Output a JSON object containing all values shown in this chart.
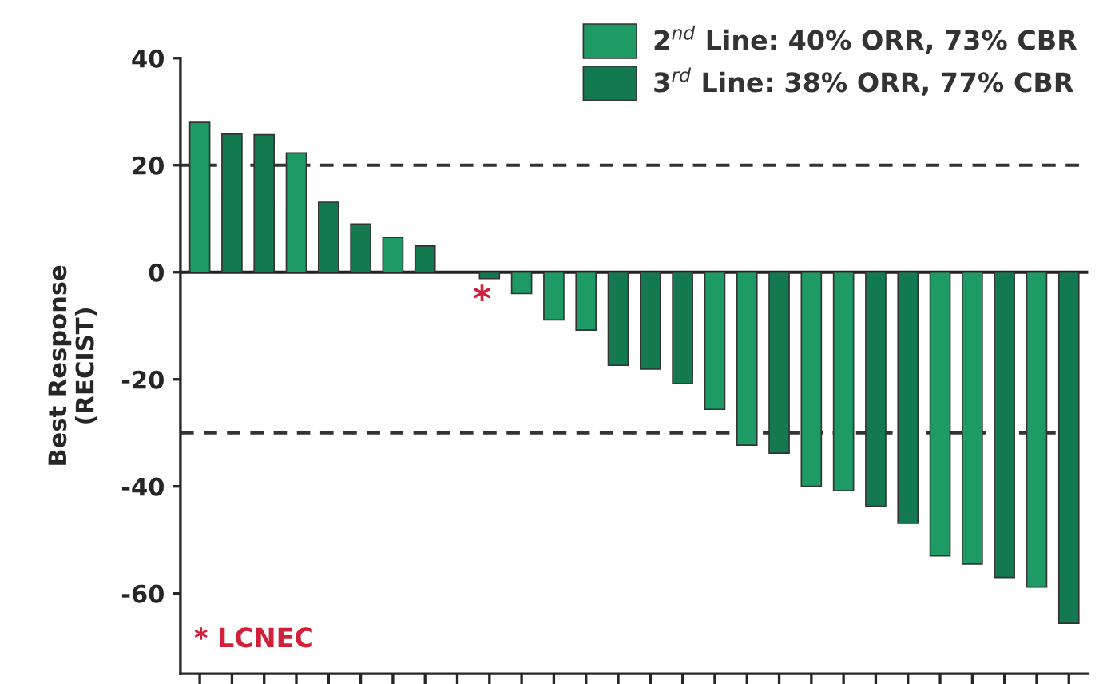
{
  "chart_data": {
    "type": "bar",
    "ylabel": "Best Response\n(RECIST)",
    "categories": [
      null,
      null,
      null,
      null,
      null,
      null,
      null,
      null,
      null,
      null,
      null,
      null,
      null,
      null,
      null,
      null,
      null,
      null,
      null,
      null,
      null,
      null,
      null,
      null,
      null,
      null,
      null,
      null
    ],
    "series": [
      {
        "name": "2$^{nd}$ Line: 40% ORR, 73% CBR",
        "color": "#1e9a64",
        "values": [
          28,
          null,
          null,
          22.3,
          null,
          null,
          6.5,
          null,
          null,
          null,
          -4,
          -8.9,
          -10.8,
          null,
          null,
          null,
          -25.6,
          -32.3,
          null,
          -40,
          -40.8,
          null,
          null,
          -53,
          -54.5,
          null,
          -58.8,
          null
        ]
      },
      {
        "name": "3$^{rd}$ Line: 38% ORR, 77% CBR",
        "color": "#137a50",
        "values": [
          null,
          25.8,
          25.7,
          null,
          13.1,
          9,
          null,
          4.9,
          null,
          -1.2,
          null,
          null,
          null,
          -17.4,
          -18.1,
          -20.8,
          null,
          null,
          -33.8,
          null,
          null,
          -43.7,
          -46.9,
          null,
          null,
          -57,
          null,
          -65.6
        ]
      }
    ],
    "ylim": [
      -75,
      40
    ],
    "yticks": [
      -60,
      -40,
      -20,
      0,
      20,
      40
    ],
    "ref_lines": [
      {
        "axis": "y",
        "value": 20,
        "line_style": "dashed",
        "color": "#333333"
      },
      {
        "axis": "y",
        "value": -30,
        "line_style": "dashed",
        "color": "#333333"
      },
      {
        "axis": "y",
        "value": 0,
        "line_style": "solid",
        "color": "#222222"
      }
    ],
    "annotations": [
      "*",
      "* LCNEC"
    ],
    "legend": "top right",
    "grid": false
  }
}
